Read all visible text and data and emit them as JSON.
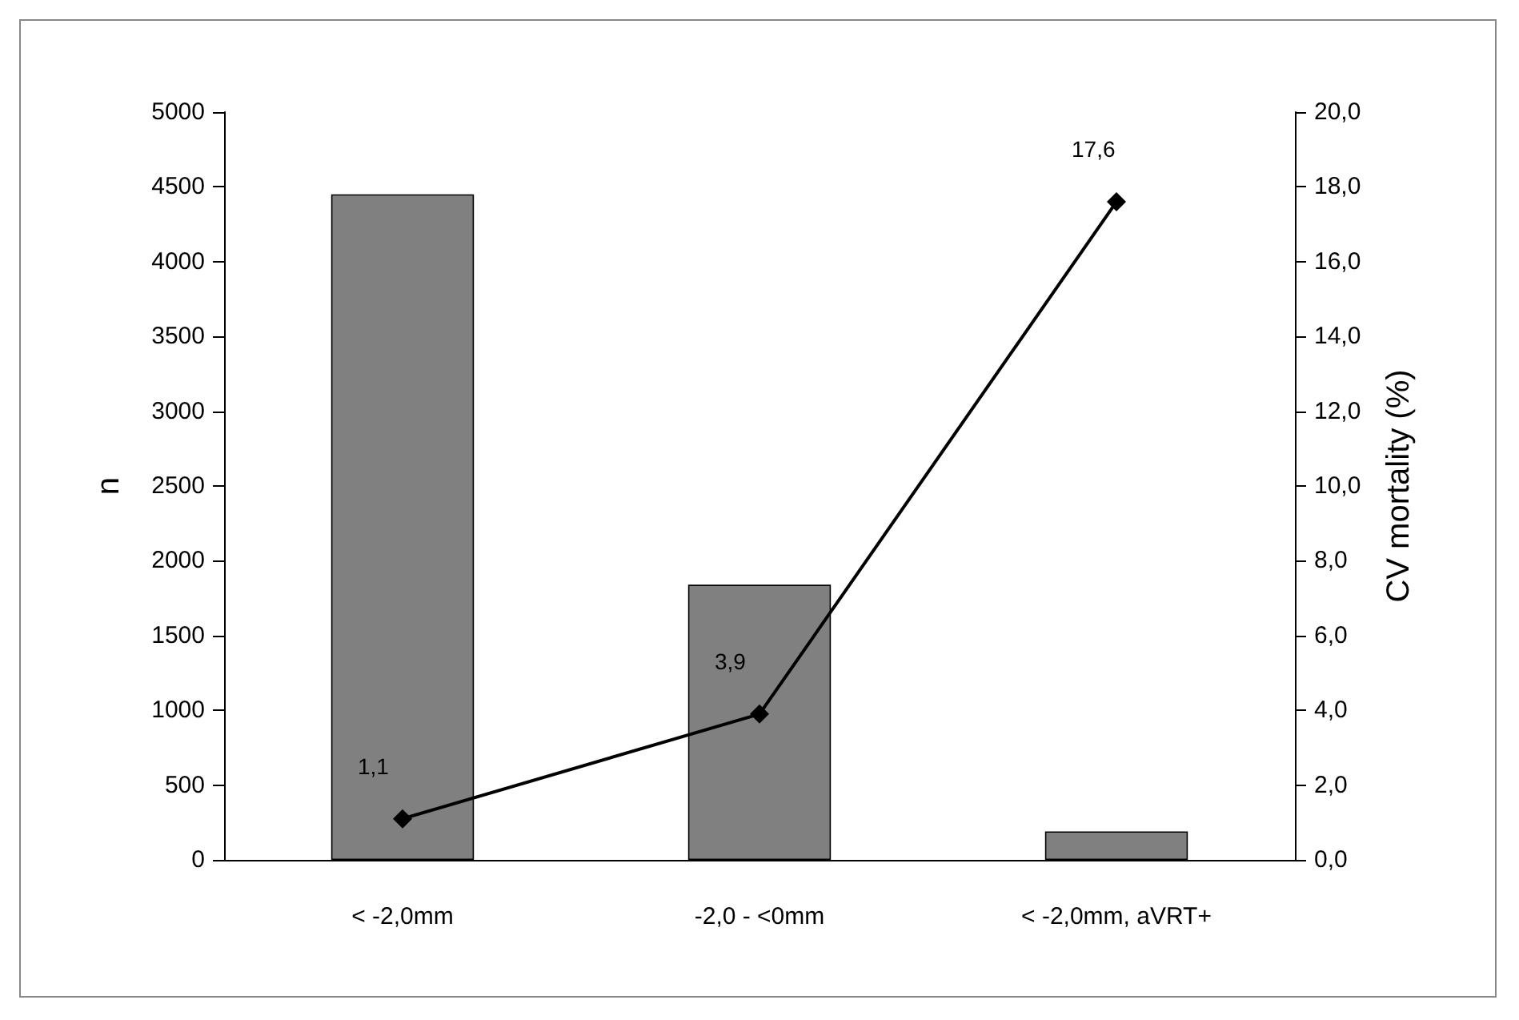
{
  "chart_data": {
    "type": "bar",
    "ylabel": "n",
    "y2label": "CV mortality (%)",
    "categories": [
      "< -2,0mm",
      "-2,0 - <0mm",
      "< -2,0mm, aVRT+"
    ],
    "series": [
      {
        "color": "#808080",
        "values": [
          4450,
          1840,
          190
        ]
      },
      {
        "type": "line",
        "axis": "y2",
        "color": "#000000",
        "values": [
          1.1,
          3.9,
          17.6
        ],
        "value_labels": [
          "1,1",
          "3,9",
          "17,6"
        ]
      }
    ],
    "ylim": [
      0,
      5000
    ],
    "yticks": [
      0,
      500,
      1000,
      1500,
      2000,
      2500,
      3000,
      3500,
      4000,
      4500,
      5000
    ],
    "y2lim": [
      0,
      20
    ],
    "y2ticks": [
      {
        "value": 0,
        "label": "0,0"
      },
      {
        "value": 2,
        "label": "2,0"
      },
      {
        "value": 4,
        "label": "4,0"
      },
      {
        "value": 6,
        "label": "6,0"
      },
      {
        "value": 8,
        "label": "8,0"
      },
      {
        "value": 10,
        "label": "10,0"
      },
      {
        "value": 12,
        "label": "12,0"
      },
      {
        "value": 14,
        "label": "14,0"
      },
      {
        "value": 16,
        "label": "16,0"
      },
      {
        "value": 18,
        "label": "18,0"
      },
      {
        "value": 20,
        "label": "20,0"
      }
    ],
    "grid": false,
    "marker": "diamond",
    "line_style": "solid"
  }
}
